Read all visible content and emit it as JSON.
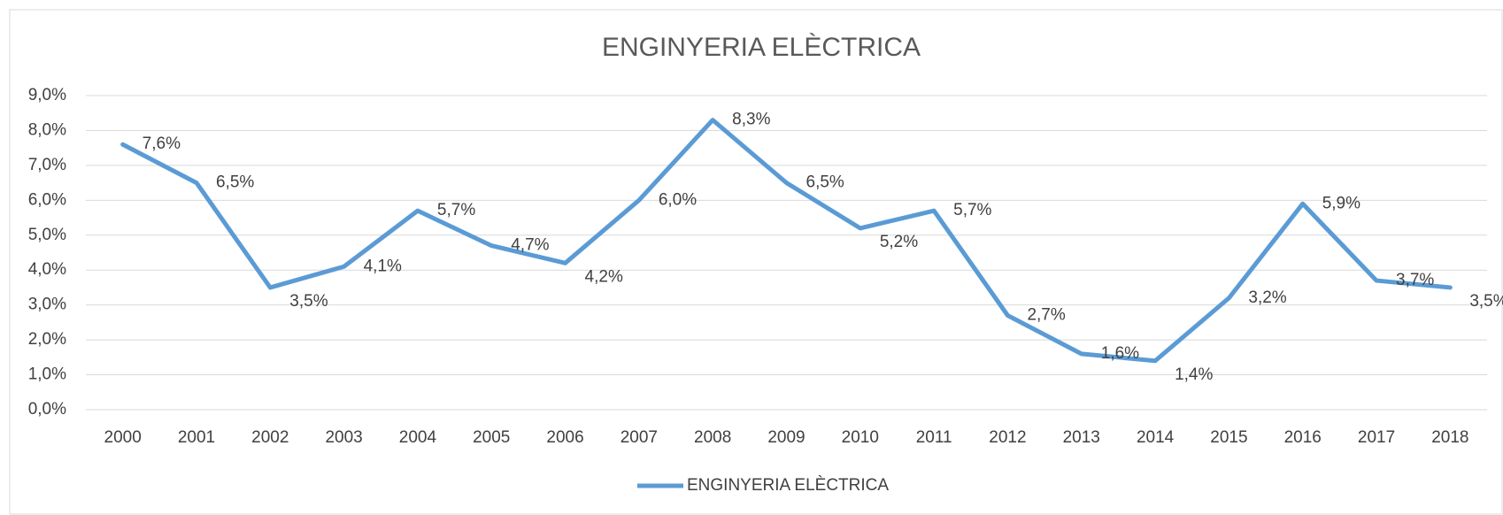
{
  "chart_data": {
    "type": "line",
    "title": "ENGINYERIA ELÈCTRICA",
    "categories": [
      "2000",
      "2001",
      "2002",
      "2003",
      "2004",
      "2005",
      "2006",
      "2007",
      "2008",
      "2009",
      "2010",
      "2011",
      "2012",
      "2013",
      "2014",
      "2015",
      "2016",
      "2017",
      "2018"
    ],
    "series": [
      {
        "name": "ENGINYERIA ELÈCTRICA",
        "color": "#5b9bd5",
        "values": [
          7.6,
          6.5,
          3.5,
          4.1,
          5.7,
          4.7,
          4.2,
          6.0,
          8.3,
          6.5,
          5.2,
          5.7,
          2.7,
          1.6,
          1.4,
          3.2,
          5.9,
          3.7,
          3.5
        ],
        "value_labels": [
          "7,6%",
          "6,5%",
          "3,5%",
          "4,1%",
          "5,7%",
          "4,7%",
          "4,2%",
          "6,0%",
          "8,3%",
          "6,5%",
          "5,2%",
          "5,7%",
          "2,7%",
          "1,6%",
          "1,4%",
          "3,2%",
          "5,9%",
          "3,7%",
          "3,5%"
        ]
      }
    ],
    "ylim": [
      0,
      9
    ],
    "yticks": [
      {
        "value": 0,
        "label": "0,0%"
      },
      {
        "value": 1,
        "label": "1,0%"
      },
      {
        "value": 2,
        "label": "2,0%"
      },
      {
        "value": 3,
        "label": "3,0%"
      },
      {
        "value": 4,
        "label": "4,0%"
      },
      {
        "value": 5,
        "label": "5,0%"
      },
      {
        "value": 6,
        "label": "6,0%"
      },
      {
        "value": 7,
        "label": "7,0%"
      },
      {
        "value": 8,
        "label": "8,0%"
      },
      {
        "value": 9,
        "label": "9,0%"
      }
    ],
    "grid": true,
    "legend": "bottom"
  }
}
